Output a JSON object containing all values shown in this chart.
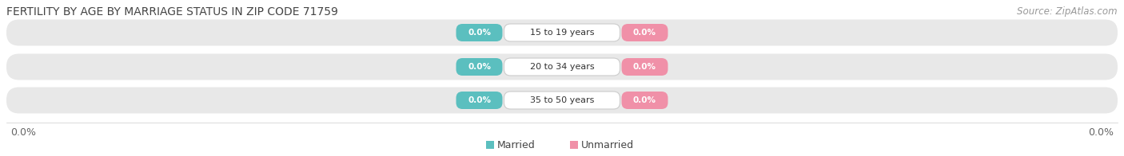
{
  "title": "FERTILITY BY AGE BY MARRIAGE STATUS IN ZIP CODE 71759",
  "source": "Source: ZipAtlas.com",
  "categories": [
    "15 to 19 years",
    "20 to 34 years",
    "35 to 50 years"
  ],
  "married_values": [
    0.0,
    0.0,
    0.0
  ],
  "unmarried_values": [
    0.0,
    0.0,
    0.0
  ],
  "married_color": "#5BBFBF",
  "unmarried_color": "#F090A8",
  "label_married": "Married",
  "label_unmarried": "Unmarried",
  "title_fontsize": 10,
  "source_fontsize": 8.5,
  "tick_fontsize": 9,
  "background_color": "#FFFFFF",
  "bar_background": "#E8E8E8"
}
